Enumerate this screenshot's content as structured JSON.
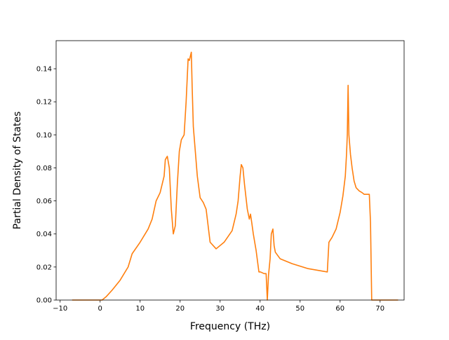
{
  "chart_data": {
    "type": "line",
    "title": "",
    "xlabel": "Frequency (THz)",
    "ylabel": "Partial Density of States",
    "xlim": [
      -11,
      76
    ],
    "ylim": [
      0,
      0.157
    ],
    "xticks": [
      -10,
      0,
      10,
      20,
      30,
      40,
      50,
      60,
      70
    ],
    "xtick_labels": [
      "−10",
      "0",
      "10",
      "20",
      "30",
      "40",
      "50",
      "60",
      "70"
    ],
    "yticks": [
      0,
      0.02,
      0.04,
      0.06,
      0.08,
      0.1,
      0.12,
      0.14
    ],
    "ytick_labels": [
      "0.00",
      "0.02",
      "0.04",
      "0.06",
      "0.08",
      "0.10",
      "0.12",
      "0.14"
    ],
    "grid": false,
    "legend": "none",
    "series": [
      {
        "color": "#ff7f0e",
        "x": [
          -7,
          -1,
          0.5,
          1.5,
          3,
          5,
          7,
          8,
          10,
          12,
          13,
          14,
          15,
          16,
          16.3,
          16.8,
          17.3,
          17.8,
          18.3,
          18.8,
          19.3,
          19.8,
          20.3,
          21,
          21.5,
          22,
          22.3,
          22.6,
          22.8,
          23,
          23.3,
          23.8,
          24.3,
          25,
          25.8,
          26.5,
          27,
          27.5,
          29,
          31,
          33,
          34,
          34.5,
          35,
          35.3,
          35.7,
          36.1,
          36.8,
          37.3,
          37.6,
          37.9,
          38.3,
          39,
          39.7,
          40.1,
          41,
          41.5,
          41.8,
          42.1,
          42.5,
          42.8,
          43.2,
          43.5,
          43.8,
          45,
          48,
          52,
          56.8,
          57.2,
          58,
          59,
          60,
          60.7,
          61.3,
          61.6,
          61.8,
          62,
          62.2,
          62.6,
          63,
          63.5,
          64,
          64.8,
          65.5,
          66,
          66.7,
          67.3,
          67.6,
          67.9,
          68.2,
          70,
          74.5
        ],
        "y": [
          0,
          0,
          0,
          0.002,
          0.006,
          0.012,
          0.02,
          0.028,
          0.035,
          0.043,
          0.049,
          0.06,
          0.065,
          0.075,
          0.085,
          0.087,
          0.08,
          0.055,
          0.04,
          0.045,
          0.07,
          0.09,
          0.097,
          0.1,
          0.12,
          0.146,
          0.145,
          0.148,
          0.15,
          0.13,
          0.105,
          0.09,
          0.075,
          0.062,
          0.059,
          0.055,
          0.045,
          0.035,
          0.031,
          0.035,
          0.042,
          0.052,
          0.06,
          0.075,
          0.082,
          0.08,
          0.07,
          0.055,
          0.049,
          0.052,
          0.047,
          0.04,
          0.03,
          0.017,
          0.017,
          0.016,
          0.016,
          0,
          0.015,
          0.025,
          0.04,
          0.043,
          0.033,
          0.029,
          0.025,
          0.022,
          0.019,
          0.017,
          0.035,
          0.038,
          0.043,
          0.053,
          0.063,
          0.075,
          0.088,
          0.1,
          0.13,
          0.1,
          0.088,
          0.08,
          0.072,
          0.068,
          0.066,
          0.065,
          0.064,
          0.064,
          0.064,
          0.047,
          0,
          0,
          0,
          0
        ]
      }
    ]
  }
}
